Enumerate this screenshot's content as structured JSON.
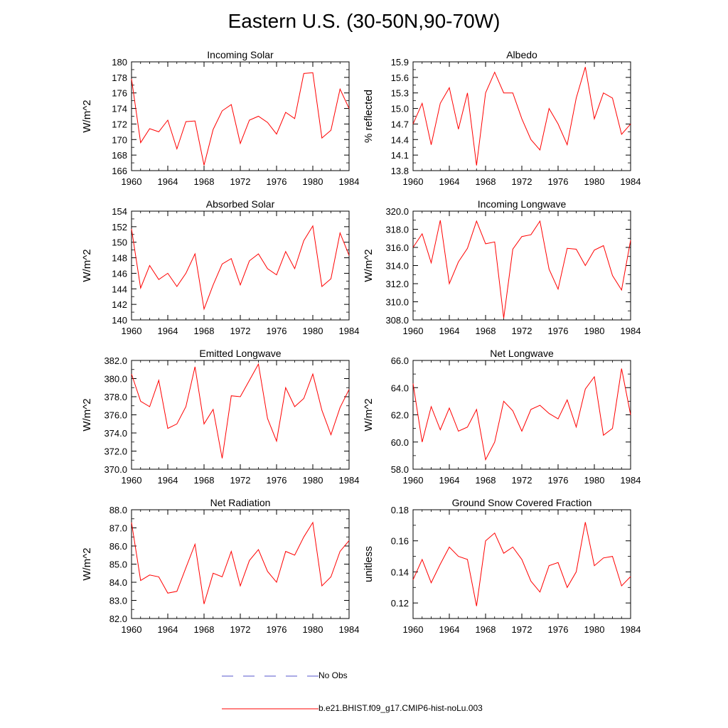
{
  "title": "Eastern U.S. (30-50N,90-70W)",
  "colors": {
    "model": "#ff0000",
    "obs": "#5555cc",
    "axis": "#000000"
  },
  "legend": [
    {
      "label": "No Obs",
      "style": "dashed",
      "color": "#5555cc"
    },
    {
      "label": "b.e21.BHIST.f09_g17.CMIP6-hist-noLu.003",
      "style": "solid",
      "color": "#ff0000"
    }
  ],
  "chart_data": [
    {
      "type": "line",
      "title": "Incoming Solar",
      "ylabel": "W/m^2",
      "xlim": [
        1960,
        1984
      ],
      "ylim": [
        166,
        180
      ],
      "yticks": [
        "166",
        "168",
        "170",
        "172",
        "174",
        "176",
        "178",
        "180"
      ],
      "xticks": [
        "1960",
        "1964",
        "1968",
        "1972",
        "1976",
        "1980",
        "1984"
      ],
      "x": [
        1960,
        1961,
        1962,
        1963,
        1964,
        1965,
        1966,
        1967,
        1968,
        1969,
        1970,
        1971,
        1972,
        1973,
        1974,
        1975,
        1976,
        1977,
        1978,
        1979,
        1980,
        1981,
        1982,
        1983,
        1984
      ],
      "series": [
        {
          "values": [
            177.8,
            169.6,
            171.4,
            171.0,
            172.5,
            168.8,
            172.3,
            172.4,
            166.7,
            171.3,
            173.7,
            174.5,
            169.5,
            172.5,
            173.0,
            172.2,
            170.7,
            173.5,
            172.7,
            178.5,
            178.6,
            170.2,
            171.2,
            176.5,
            174.0
          ]
        }
      ]
    },
    {
      "type": "line",
      "title": "Albedo",
      "ylabel": "% reflected",
      "xlim": [
        1960,
        1984
      ],
      "ylim": [
        13.8,
        15.9
      ],
      "yticks": [
        "13.8",
        "14.1",
        "14.4",
        "14.7",
        "15.0",
        "15.3",
        "15.6",
        "15.9"
      ],
      "xticks": [
        "1960",
        "1964",
        "1968",
        "1972",
        "1976",
        "1980",
        "1984"
      ],
      "x": [
        1960,
        1961,
        1962,
        1963,
        1964,
        1965,
        1966,
        1967,
        1968,
        1969,
        1970,
        1971,
        1972,
        1973,
        1974,
        1975,
        1976,
        1977,
        1978,
        1979,
        1980,
        1981,
        1982,
        1983,
        1984
      ],
      "series": [
        {
          "values": [
            14.7,
            15.1,
            14.3,
            15.1,
            15.4,
            14.6,
            15.3,
            13.9,
            15.3,
            15.7,
            15.3,
            15.3,
            14.8,
            14.4,
            14.2,
            15.0,
            14.7,
            14.3,
            15.2,
            15.8,
            14.8,
            15.3,
            15.2,
            14.5,
            14.7
          ]
        }
      ]
    },
    {
      "type": "line",
      "title": "Absorbed Solar",
      "ylabel": "W/m^2",
      "xlim": [
        1960,
        1984
      ],
      "ylim": [
        140,
        154
      ],
      "yticks": [
        "140",
        "142",
        "144",
        "146",
        "148",
        "150",
        "152",
        "154"
      ],
      "xticks": [
        "1960",
        "1964",
        "1968",
        "1972",
        "1976",
        "1980",
        "1984"
      ],
      "x": [
        1960,
        1961,
        1962,
        1963,
        1964,
        1965,
        1966,
        1967,
        1968,
        1969,
        1970,
        1971,
        1972,
        1973,
        1974,
        1975,
        1976,
        1977,
        1978,
        1979,
        1980,
        1981,
        1982,
        1983,
        1984
      ],
      "series": [
        {
          "values": [
            151.7,
            144.1,
            147.0,
            145.2,
            146.0,
            144.3,
            146.0,
            148.5,
            141.4,
            144.5,
            147.2,
            147.9,
            144.5,
            147.6,
            148.5,
            146.6,
            145.8,
            148.8,
            146.6,
            150.2,
            152.1,
            144.3,
            145.3,
            151.2,
            148.3
          ]
        }
      ]
    },
    {
      "type": "line",
      "title": "Incoming Longwave",
      "ylabel": "W/m^2",
      "xlim": [
        1960,
        1984
      ],
      "ylim": [
        308,
        320
      ],
      "yticks": [
        "308.0",
        "310.0",
        "312.0",
        "314.0",
        "316.0",
        "318.0",
        "320.0"
      ],
      "xticks": [
        "1960",
        "1964",
        "1968",
        "1972",
        "1976",
        "1980",
        "1984"
      ],
      "x": [
        1960,
        1961,
        1962,
        1963,
        1964,
        1965,
        1966,
        1967,
        1968,
        1969,
        1970,
        1971,
        1972,
        1973,
        1974,
        1975,
        1976,
        1977,
        1978,
        1979,
        1980,
        1981,
        1982,
        1983,
        1984
      ],
      "series": [
        {
          "values": [
            316.0,
            317.5,
            314.3,
            319.0,
            312.0,
            314.4,
            315.9,
            318.9,
            316.4,
            316.6,
            308.2,
            315.8,
            317.2,
            317.4,
            318.9,
            313.6,
            311.4,
            315.9,
            315.8,
            314.0,
            315.7,
            316.2,
            312.9,
            311.3,
            316.8
          ]
        }
      ]
    },
    {
      "type": "line",
      "title": "Emitted Longwave",
      "ylabel": "W/m^2",
      "xlim": [
        1960,
        1984
      ],
      "ylim": [
        370,
        382
      ],
      "yticks": [
        "370.0",
        "372.0",
        "374.0",
        "376.0",
        "378.0",
        "380.0",
        "382.0"
      ],
      "xticks": [
        "1960",
        "1964",
        "1968",
        "1972",
        "1976",
        "1980",
        "1984"
      ],
      "x": [
        1960,
        1961,
        1962,
        1963,
        1964,
        1965,
        1966,
        1967,
        1968,
        1969,
        1970,
        1971,
        1972,
        1973,
        1974,
        1975,
        1976,
        1977,
        1978,
        1979,
        1980,
        1981,
        1982,
        1983,
        1984
      ],
      "series": [
        {
          "values": [
            380.5,
            377.5,
            376.9,
            379.8,
            374.5,
            375.0,
            376.9,
            381.3,
            375.0,
            376.6,
            371.2,
            378.1,
            378.0,
            379.8,
            381.6,
            375.6,
            373.1,
            379.0,
            376.9,
            377.8,
            380.5,
            376.5,
            373.8,
            376.8,
            378.8
          ]
        }
      ]
    },
    {
      "type": "line",
      "title": "Net Longwave",
      "ylabel": "W/m^2",
      "xlim": [
        1960,
        1984
      ],
      "ylim": [
        58,
        66
      ],
      "yticks": [
        "58.0",
        "60.0",
        "62.0",
        "64.0",
        "66.0"
      ],
      "xticks": [
        "1960",
        "1964",
        "1968",
        "1972",
        "1976",
        "1980",
        "1984"
      ],
      "x": [
        1960,
        1961,
        1962,
        1963,
        1964,
        1965,
        1966,
        1967,
        1968,
        1969,
        1970,
        1971,
        1972,
        1973,
        1974,
        1975,
        1976,
        1977,
        1978,
        1979,
        1980,
        1981,
        1982,
        1983,
        1984
      ],
      "series": [
        {
          "values": [
            64.3,
            60.0,
            62.6,
            60.9,
            62.5,
            60.8,
            61.1,
            62.4,
            58.7,
            60.0,
            63.0,
            62.3,
            60.8,
            62.4,
            62.7,
            62.1,
            61.7,
            63.1,
            61.1,
            63.9,
            64.8,
            60.5,
            61.0,
            65.4,
            62.0
          ]
        }
      ]
    },
    {
      "type": "line",
      "title": "Net Radiation",
      "ylabel": "W/m^2",
      "xlim": [
        1960,
        1984
      ],
      "ylim": [
        82,
        88
      ],
      "yticks": [
        "82.0",
        "83.0",
        "84.0",
        "85.0",
        "86.0",
        "87.0",
        "88.0"
      ],
      "xticks": [
        "1960",
        "1964",
        "1968",
        "1972",
        "1976",
        "1980",
        "1984"
      ],
      "x": [
        1960,
        1961,
        1962,
        1963,
        1964,
        1965,
        1966,
        1967,
        1968,
        1969,
        1970,
        1971,
        1972,
        1973,
        1974,
        1975,
        1976,
        1977,
        1978,
        1979,
        1980,
        1981,
        1982,
        1983,
        1984
      ],
      "series": [
        {
          "values": [
            87.3,
            84.1,
            84.4,
            84.3,
            83.4,
            83.5,
            84.8,
            86.1,
            82.8,
            84.5,
            84.3,
            85.7,
            83.8,
            85.2,
            85.8,
            84.6,
            84.0,
            85.7,
            85.5,
            86.5,
            87.3,
            83.8,
            84.3,
            85.7,
            86.3
          ]
        }
      ]
    },
    {
      "type": "line",
      "title": "Ground Snow Covered Fraction",
      "ylabel": "unitless",
      "xlim": [
        1960,
        1984
      ],
      "ylim": [
        0.11,
        0.18
      ],
      "yticks": [
        "0.12",
        "0.14",
        "0.16",
        "0.18"
      ],
      "ytick_values": [
        0.12,
        0.14,
        0.16,
        0.18
      ],
      "xticks": [
        "1960",
        "1964",
        "1968",
        "1972",
        "1976",
        "1980",
        "1984"
      ],
      "x": [
        1960,
        1961,
        1962,
        1963,
        1964,
        1965,
        1966,
        1967,
        1968,
        1969,
        1970,
        1971,
        1972,
        1973,
        1974,
        1975,
        1976,
        1977,
        1978,
        1979,
        1980,
        1981,
        1982,
        1983,
        1984
      ],
      "series": [
        {
          "values": [
            0.135,
            0.148,
            0.133,
            0.145,
            0.156,
            0.15,
            0.148,
            0.118,
            0.16,
            0.165,
            0.152,
            0.156,
            0.148,
            0.134,
            0.127,
            0.144,
            0.146,
            0.13,
            0.14,
            0.172,
            0.144,
            0.149,
            0.15,
            0.131,
            0.137
          ]
        }
      ]
    }
  ]
}
